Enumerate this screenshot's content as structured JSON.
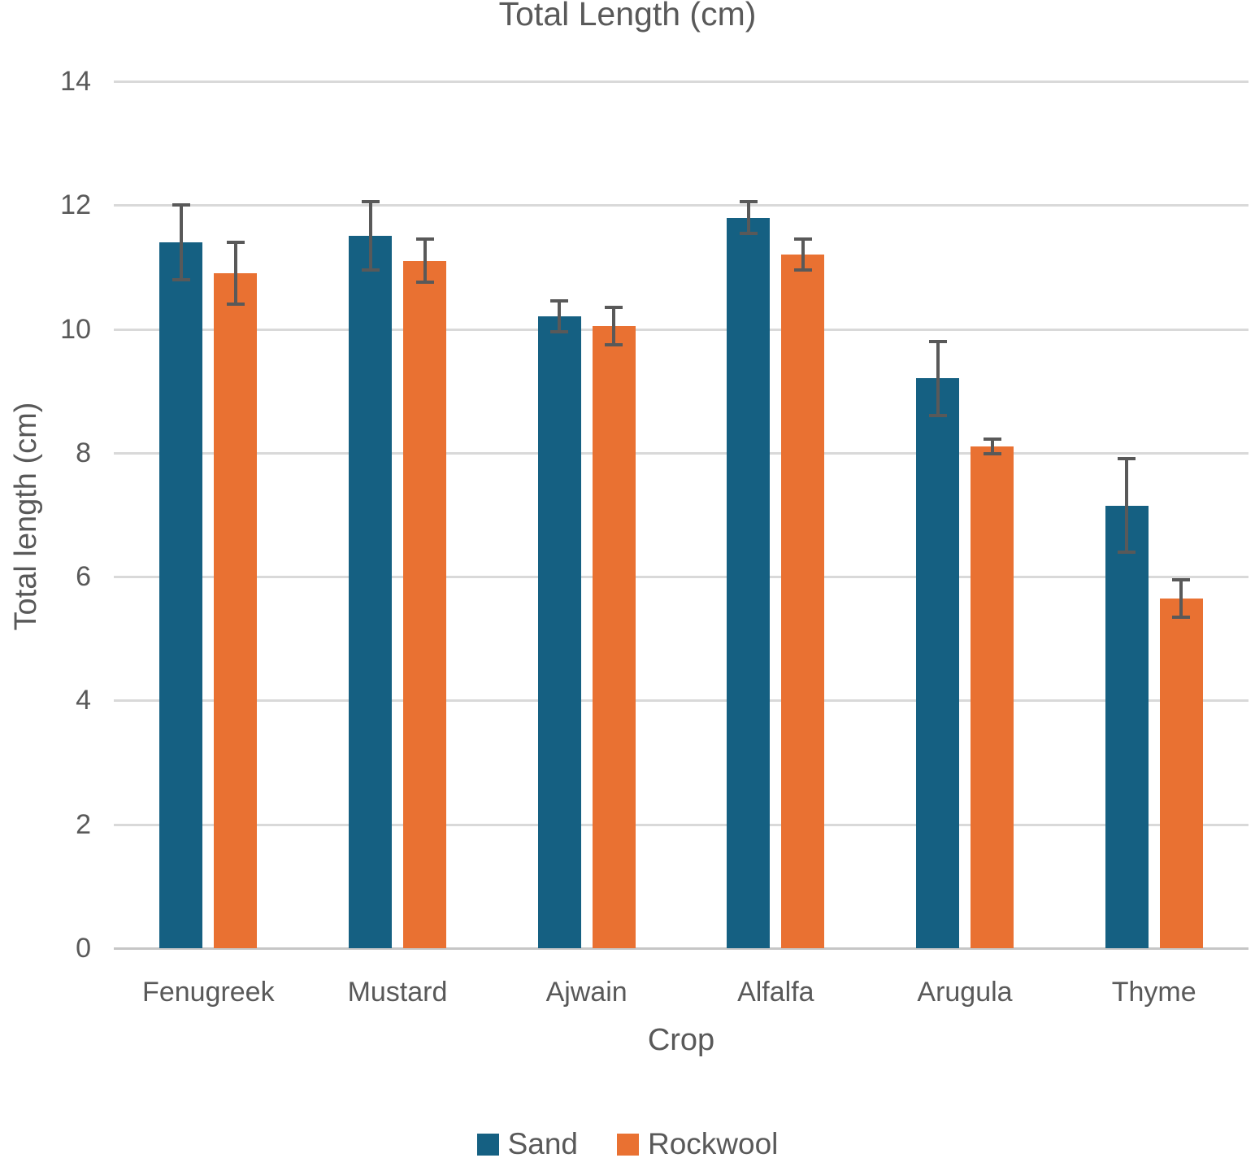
{
  "chart_data": {
    "type": "bar",
    "title": "Total Length (cm)",
    "xlabel": "Crop",
    "ylabel": "Total length (cm)",
    "ylim": [
      0,
      14
    ],
    "y_ticks": [
      0,
      2,
      4,
      6,
      8,
      10,
      12,
      14
    ],
    "grid": true,
    "legend_position": "bottom",
    "categories": [
      "Fenugreek",
      "Mustard",
      "Ajwain",
      "Alfalfa",
      "Arugula",
      "Thyme"
    ],
    "series": [
      {
        "name": "Sand",
        "color": "#156082",
        "values": [
          11.4,
          11.5,
          10.2,
          11.8,
          9.2,
          7.15
        ],
        "errors": [
          0.6,
          0.55,
          0.25,
          0.25,
          0.6,
          0.75
        ]
      },
      {
        "name": "Rockwool",
        "color": "#E97132",
        "values": [
          10.9,
          11.1,
          10.05,
          11.2,
          8.1,
          5.65
        ],
        "errors": [
          0.5,
          0.35,
          0.3,
          0.25,
          0.12,
          0.3
        ]
      }
    ],
    "colors": {
      "grid": "#D9D9D9",
      "axis_line": "#C6C6C6",
      "text": "#595959",
      "error_bar": "#595959",
      "background": "#FFFFFF"
    }
  }
}
